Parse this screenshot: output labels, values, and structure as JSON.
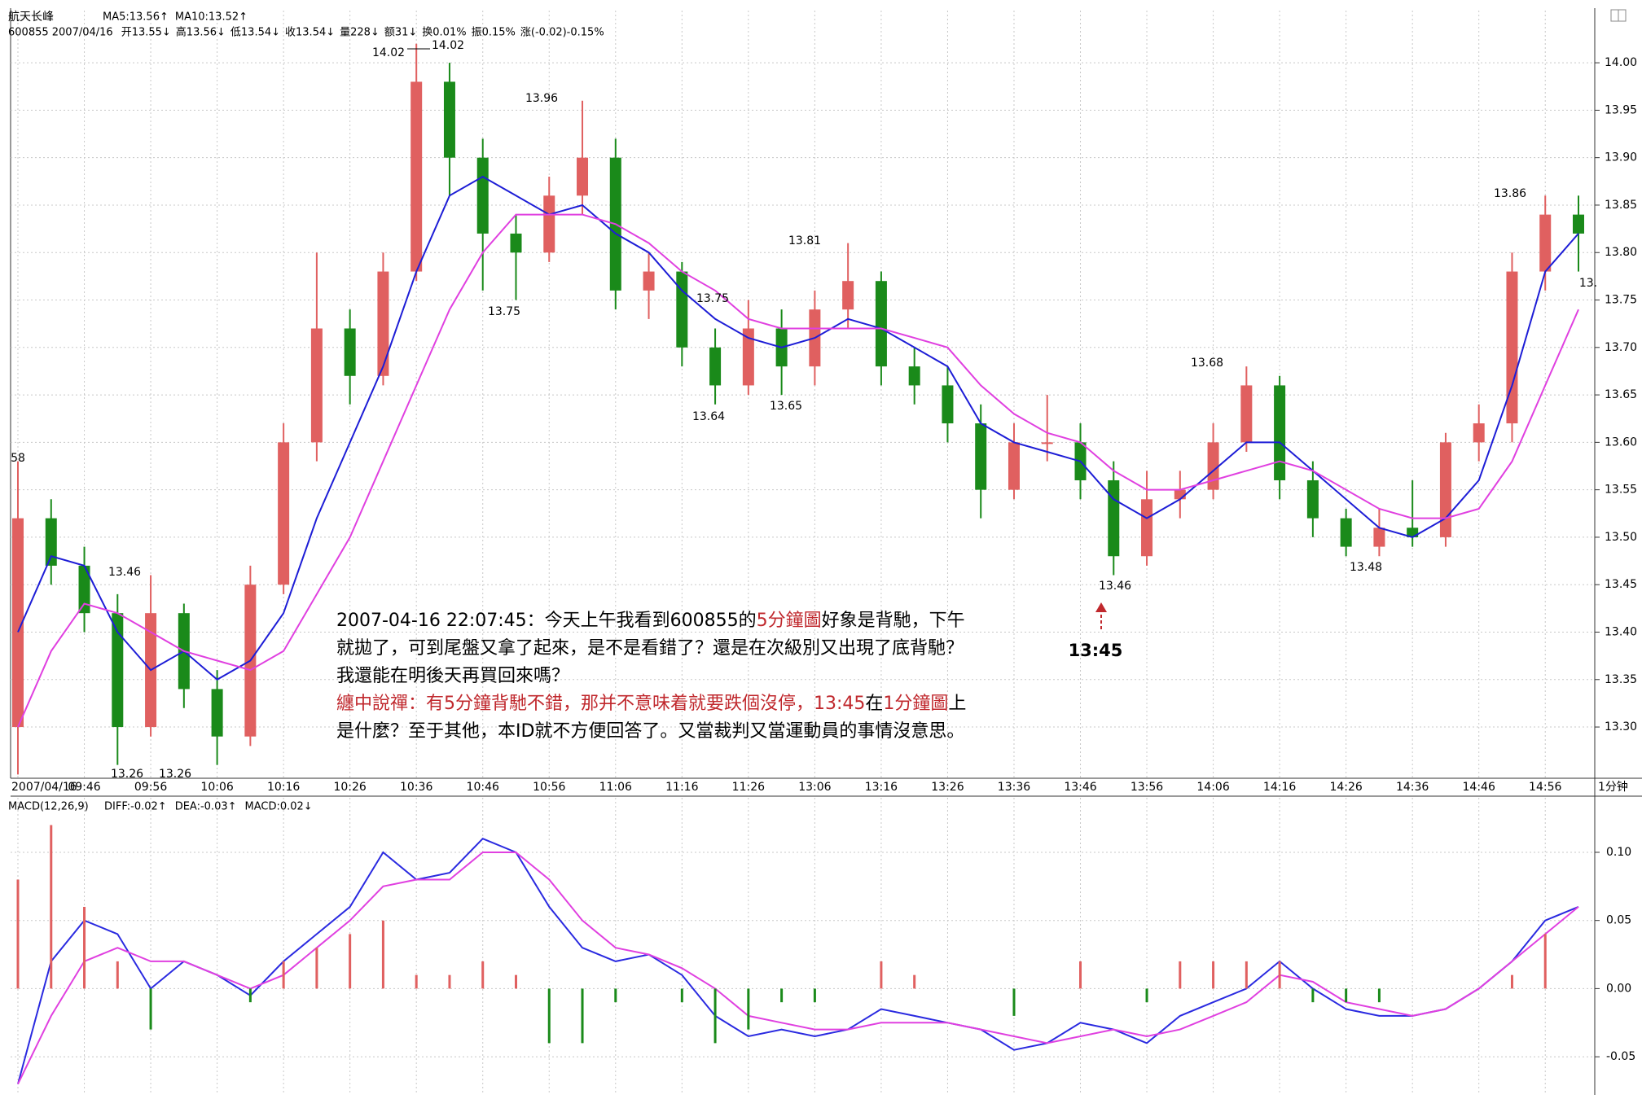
{
  "chart_data": [
    {
      "type": "candlestick",
      "title": "航天长峰",
      "subtitle": "600855 2007/04/16",
      "quote": [
        {
          "text": "开13.55↓",
          "color": "#1a8a1a"
        },
        {
          "text": "高13.56↓",
          "color": "#000000"
        },
        {
          "text": "低13.54↓",
          "color": "#1a8a1a"
        },
        {
          "text": "收13.54↓",
          "color": "#1a8a1a"
        },
        {
          "text": "量228↓",
          "color": "#000000"
        },
        {
          "text": "额31↓",
          "color": "#000000"
        },
        {
          "text": "换0.01%",
          "color": "#000000"
        },
        {
          "text": "振0.15%",
          "color": "#000000"
        },
        {
          "text": "涨(-0.02)-0.15%",
          "color": "#1a8a1a"
        }
      ],
      "categories": [
        "2007/04/16",
        null,
        "09:46",
        null,
        "09:56",
        null,
        "10:06",
        null,
        "10:16",
        null,
        "10:26",
        null,
        "10:36",
        null,
        "10:46",
        null,
        "10:56",
        null,
        "11:06",
        null,
        "11:16",
        null,
        "11:26",
        null,
        "13:06",
        null,
        "13:16",
        null,
        "13:26",
        null,
        "13:36",
        null,
        "13:46",
        null,
        "13:56",
        null,
        "14:06",
        null,
        "14:16",
        null,
        "14:26",
        null,
        "14:36",
        null,
        "14:46",
        null,
        "14:56",
        null
      ],
      "x_unit": "1分钟",
      "open": [
        13.3,
        13.52,
        13.47,
        13.42,
        13.3,
        13.42,
        13.34,
        13.29,
        13.45,
        13.6,
        13.72,
        13.67,
        13.78,
        13.98,
        13.9,
        13.82,
        13.8,
        13.86,
        13.9,
        13.76,
        13.78,
        13.7,
        13.66,
        13.72,
        13.68,
        13.74,
        13.77,
        13.68,
        13.66,
        13.62,
        13.55,
        13.6,
        13.6,
        13.56,
        13.48,
        13.54,
        13.55,
        13.6,
        13.66,
        13.56,
        13.52,
        13.49,
        13.51,
        13.5,
        13.6,
        13.62,
        13.78,
        13.84
      ],
      "high": [
        13.58,
        13.54,
        13.49,
        13.44,
        13.46,
        13.43,
        13.36,
        13.47,
        13.62,
        13.8,
        13.74,
        13.8,
        14.02,
        14.0,
        13.92,
        13.84,
        13.88,
        13.96,
        13.92,
        13.8,
        13.79,
        13.72,
        13.75,
        13.74,
        13.76,
        13.81,
        13.78,
        13.7,
        13.68,
        13.64,
        13.62,
        13.65,
        13.62,
        13.58,
        13.57,
        13.57,
        13.62,
        13.68,
        13.67,
        13.58,
        13.53,
        13.53,
        13.56,
        13.61,
        13.64,
        13.8,
        13.86,
        13.86
      ],
      "low": [
        13.25,
        13.45,
        13.4,
        13.26,
        13.29,
        13.32,
        13.26,
        13.28,
        13.44,
        13.58,
        13.64,
        13.66,
        13.77,
        13.86,
        13.76,
        13.75,
        13.79,
        13.84,
        13.74,
        13.73,
        13.68,
        13.64,
        13.65,
        13.65,
        13.66,
        13.72,
        13.66,
        13.64,
        13.6,
        13.52,
        13.54,
        13.58,
        13.54,
        13.46,
        13.47,
        13.52,
        13.54,
        13.59,
        13.54,
        13.5,
        13.48,
        13.48,
        13.49,
        13.49,
        13.58,
        13.6,
        13.76,
        13.78
      ],
      "close": [
        13.52,
        13.47,
        13.42,
        13.3,
        13.42,
        13.34,
        13.29,
        13.45,
        13.6,
        13.72,
        13.67,
        13.78,
        13.98,
        13.9,
        13.82,
        13.8,
        13.86,
        13.9,
        13.76,
        13.78,
        13.7,
        13.66,
        13.72,
        13.68,
        13.74,
        13.77,
        13.68,
        13.66,
        13.62,
        13.55,
        13.6,
        13.6,
        13.56,
        13.48,
        13.54,
        13.55,
        13.6,
        13.66,
        13.56,
        13.52,
        13.49,
        13.51,
        13.5,
        13.6,
        13.62,
        13.78,
        13.84,
        13.82
      ],
      "up_color": "#e06060",
      "down_color": "#1a8a1a",
      "indicators": [
        {
          "label": "MA5:13.56↑",
          "color": "#1d1dd6",
          "values": [
            13.4,
            13.48,
            13.47,
            13.4,
            13.36,
            13.38,
            13.35,
            13.37,
            13.42,
            13.52,
            13.6,
            13.68,
            13.78,
            13.86,
            13.88,
            13.86,
            13.84,
            13.85,
            13.82,
            13.8,
            13.76,
            13.73,
            13.71,
            13.7,
            13.71,
            13.73,
            13.72,
            13.7,
            13.68,
            13.62,
            13.6,
            13.59,
            13.58,
            13.54,
            13.52,
            13.54,
            13.57,
            13.6,
            13.6,
            13.57,
            13.54,
            13.51,
            13.5,
            13.52,
            13.56,
            13.66,
            13.78,
            13.82
          ]
        },
        {
          "label": "MA10:13.52↑",
          "color": "#e040e0",
          "values": [
            13.3,
            13.38,
            13.43,
            13.42,
            13.4,
            13.38,
            13.37,
            13.36,
            13.38,
            13.44,
            13.5,
            13.58,
            13.66,
            13.74,
            13.8,
            13.84,
            13.84,
            13.84,
            13.83,
            13.81,
            13.78,
            13.76,
            13.73,
            13.72,
            13.72,
            13.72,
            13.72,
            13.71,
            13.7,
            13.66,
            13.63,
            13.61,
            13.6,
            13.57,
            13.55,
            13.55,
            13.56,
            13.57,
            13.58,
            13.57,
            13.55,
            13.53,
            13.52,
            13.52,
            13.53,
            13.58,
            13.66,
            13.74
          ]
        }
      ],
      "annotations": [
        "58",
        "13.46",
        "13.26",
        "13.26",
        "14.02",
        "14.02",
        "13.96",
        "13.75",
        "13.81",
        "13.75",
        "13.64",
        "13.65",
        "13.68",
        "13.46",
        "13.48",
        "13.86",
        "13."
      ],
      "ylim": [
        13.246,
        14.055
      ],
      "yticks": [
        {
          "value": 13.3,
          "label": "13.30"
        },
        {
          "value": 13.35,
          "label": "13.35"
        },
        {
          "value": 13.4,
          "label": "13.40"
        },
        {
          "value": 13.45,
          "label": "13.45"
        },
        {
          "value": 13.5,
          "label": "13.50"
        },
        {
          "value": 13.55,
          "label": "13.55"
        },
        {
          "value": 13.6,
          "label": "13.60"
        },
        {
          "value": 13.65,
          "label": "13.65"
        },
        {
          "value": 13.7,
          "label": "13.70"
        },
        {
          "value": 13.75,
          "label": "13.75"
        },
        {
          "value": 13.8,
          "label": "13.80"
        },
        {
          "value": 13.85,
          "label": "13.85"
        },
        {
          "value": 13.9,
          "label": "13.90"
        },
        {
          "value": 13.95,
          "label": "13.95"
        },
        {
          "value": 14.0,
          "label": "14.00"
        }
      ],
      "grid": true,
      "comment": [
        [
          {
            "text": "2007-04-16 22:07:45：今天上午我看到600855的"
          },
          {
            "text": "5分鐘圖",
            "color": "#c0282d"
          },
          {
            "text": "好象是背馳，下午"
          }
        ],
        [
          {
            "text": "就拋了，可到尾盤又拿了起來，是不是看錯了？還是在次級別又出現了底背馳？"
          }
        ],
        [
          {
            "text": "我還能在明後天再買回來嗎？"
          }
        ],
        [
          {
            "text": "纏中說禪：有5分鐘背馳不錯，那并不意味着就要跌個沒停，13:45",
            "color": "#c0282d"
          },
          {
            "text": "在"
          },
          {
            "text": "1分鐘圖",
            "color": "#c0282d"
          },
          {
            "text": "上"
          }
        ],
        [
          {
            "text": "是什麼？至于其他，本ID就不方便回答了。又當裁判又當運動員的事情沒意思。"
          }
        ]
      ],
      "arrow_label": "13:45"
    },
    {
      "type": "macd",
      "title": "MACD(12,26,9)",
      "series": [
        {
          "label": "DIFF:-0.02↑",
          "color": "#2a2ae0",
          "values": [
            -0.07,
            0.02,
            0.05,
            0.04,
            0.0,
            0.02,
            0.01,
            -0.005,
            0.02,
            0.04,
            0.06,
            0.1,
            0.08,
            0.085,
            0.11,
            0.1,
            0.06,
            0.03,
            0.02,
            0.025,
            0.01,
            -0.02,
            -0.035,
            -0.03,
            -0.035,
            -0.03,
            -0.015,
            -0.02,
            -0.025,
            -0.03,
            -0.045,
            -0.04,
            -0.025,
            -0.03,
            -0.04,
            -0.02,
            -0.01,
            0.0,
            0.02,
            0.0,
            -0.015,
            -0.02,
            -0.02,
            -0.015,
            0.0,
            0.02,
            0.05,
            0.06
          ]
        },
        {
          "label": "DEA:-0.03↑",
          "color": "#e040e0",
          "values": [
            -0.07,
            -0.02,
            0.02,
            0.03,
            0.02,
            0.02,
            0.01,
            0.0,
            0.01,
            0.03,
            0.05,
            0.075,
            0.08,
            0.08,
            0.1,
            0.1,
            0.08,
            0.05,
            0.03,
            0.025,
            0.015,
            0.0,
            -0.02,
            -0.025,
            -0.03,
            -0.03,
            -0.025,
            -0.025,
            -0.025,
            -0.03,
            -0.035,
            -0.04,
            -0.035,
            -0.03,
            -0.035,
            -0.03,
            -0.02,
            -0.01,
            0.01,
            0.005,
            -0.01,
            -0.015,
            -0.02,
            -0.015,
            0.0,
            0.02,
            0.04,
            0.06
          ]
        },
        {
          "label": "MACD:0.02↓",
          "type": "bar",
          "color": "#000000",
          "values": [
            0.08,
            0.12,
            0.06,
            0.02,
            -0.03,
            0.0,
            0.0,
            -0.01,
            0.02,
            0.03,
            0.04,
            0.05,
            0.01,
            0.01,
            0.02,
            0.01,
            -0.04,
            -0.04,
            -0.01,
            0.0,
            -0.01,
            -0.04,
            -0.03,
            -0.01,
            -0.01,
            0.0,
            0.02,
            0.01,
            0.0,
            0.0,
            -0.02,
            0.0,
            0.02,
            0.0,
            -0.01,
            0.02,
            0.02,
            0.02,
            0.02,
            -0.01,
            -0.01,
            -0.01,
            0.0,
            0.0,
            0.0,
            0.01,
            0.04,
            0.0
          ]
        }
      ],
      "ylim": [
        -0.078,
        0.14
      ],
      "yticks": [
        {
          "value": 0.1,
          "label": "0.10"
        },
        {
          "value": 0.05,
          "label": "0.05"
        },
        {
          "value": 0,
          "label": "0.00"
        },
        {
          "value": -0.05,
          "label": "-0.05"
        }
      ],
      "grid": true
    }
  ]
}
